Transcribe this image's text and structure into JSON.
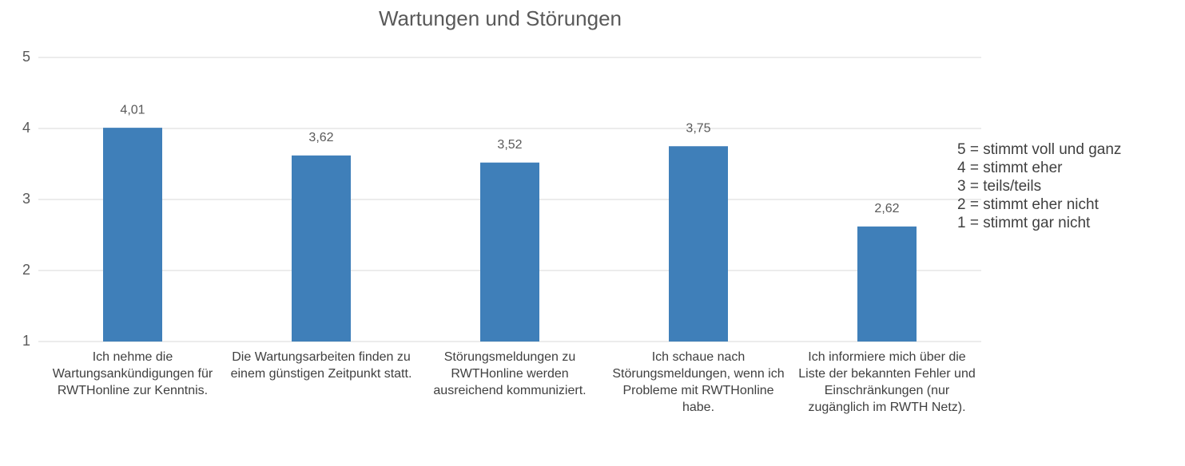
{
  "chart_data": {
    "type": "bar",
    "title": "Wartungen und Störungen",
    "categories": [
      "Ich nehme die Wartungsankündigungen für RWTHonline zur Kenntnis.",
      "Die Wartungsarbeiten finden zu einem günstigen Zeitpunkt statt.",
      "Störungsmeldungen zu RWTHonline werden ausreichend kommuniziert.",
      "Ich schaue nach Störungsmeldungen, wenn ich Probleme mit RWTHonline habe.",
      "Ich informiere mich über die Liste der bekannten Fehler und Einschränkungen (nur zugänglich im RWTH Netz)."
    ],
    "values": [
      4.01,
      3.62,
      3.52,
      3.75,
      2.62
    ],
    "value_labels": [
      "4,01",
      "3,62",
      "3,52",
      "3,75",
      "2,62"
    ],
    "color": "#3f7fb9",
    "ylim": [
      1,
      5
    ],
    "yticks": [
      1,
      2,
      3,
      4,
      5
    ],
    "grid": true,
    "annotations": [
      "5 = stimmt voll und ganz",
      "4 = stimmt eher",
      "3 = teils/teils",
      "2 = stimmt eher nicht",
      "1 = stimmt gar nicht"
    ]
  }
}
